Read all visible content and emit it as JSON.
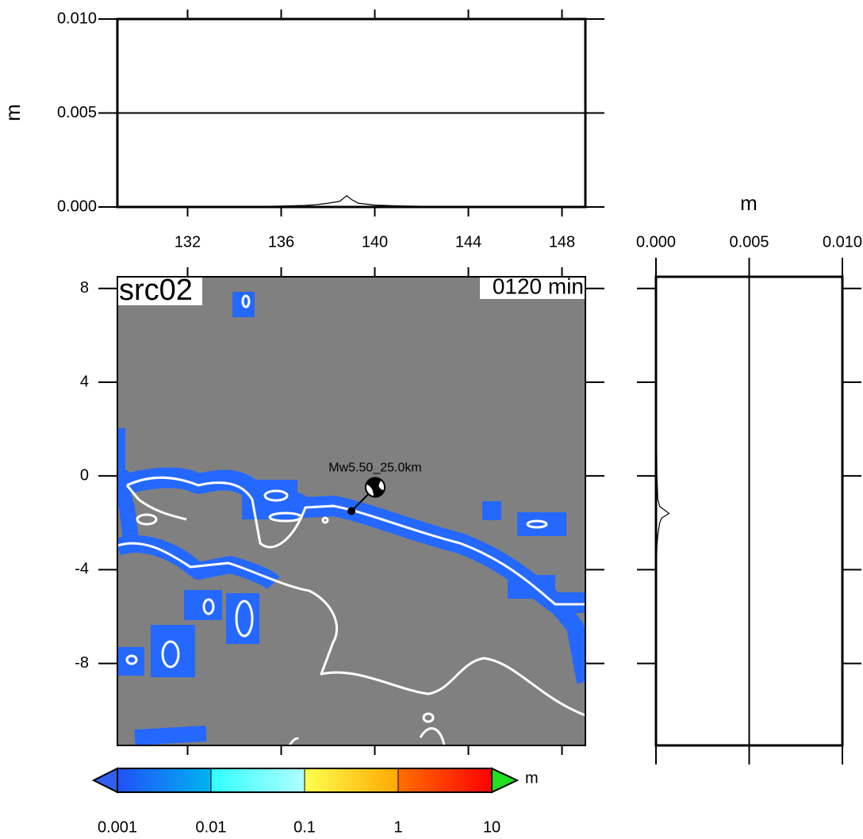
{
  "chart_data": [
    {
      "type": "line",
      "ylabel": "m",
      "color": "#000000",
      "x": [
        134,
        135,
        136,
        137,
        137.5,
        138,
        138.5,
        138.8,
        139,
        139.3,
        140,
        141,
        142,
        143,
        144,
        145
      ],
      "values": [
        2e-05,
        3e-05,
        5e-05,
        8e-05,
        0.00012,
        0.0002,
        0.0003,
        0.0006,
        0.0004,
        0.0002,
        0.0001,
        6e-05,
        4e-05,
        2e-05,
        1e-05,
        1e-05
      ],
      "xlim": [
        129,
        149
      ],
      "xticks": [
        132,
        136,
        140,
        144,
        148
      ],
      "ylim": [
        0,
        0.01
      ],
      "yticks": [
        {
          "value": 0,
          "label": "0.000"
        },
        0.005,
        {
          "value": 0.01,
          "label": "0.010"
        }
      ],
      "grid": true
    },
    {
      "type": "map",
      "title": "src02",
      "time_label": "0120 min",
      "event_label": "Mw5.50_25.0km",
      "epicenter": {
        "lon": 139,
        "lat": -1.5
      },
      "xlim": [
        129,
        149
      ],
      "ylim": [
        -11.5,
        8.5
      ],
      "yticks": [
        8,
        4,
        0,
        -4,
        -8
      ],
      "ocean_color": "#808080",
      "coast_color": "#ffffff",
      "wave_color": "#2468ff"
    },
    {
      "type": "line",
      "orientation": "horizontal",
      "xlabel": "m",
      "color": "#000000",
      "y": [
        4,
        2,
        0,
        -1,
        -1.3,
        -1.6,
        -1.8,
        -2,
        -2.5,
        -3,
        -4
      ],
      "values": [
        2e-05,
        3e-05,
        5e-05,
        0.0001,
        0.0002,
        0.0007,
        0.0003,
        0.0002,
        0.0001,
        5e-05,
        2e-05
      ],
      "xlim": [
        0,
        0.01
      ],
      "xticks": [
        {
          "value": 0,
          "label": "0.000"
        },
        0.005,
        {
          "value": 0.01,
          "label": "0.010"
        }
      ],
      "ylim": [
        -11.5,
        8.5
      ],
      "grid": true
    },
    {
      "type": "colorbar",
      "log_scale": true,
      "unit": "m",
      "lim": [
        0.001,
        10
      ],
      "ticks": [
        0.001,
        0.01,
        0.1,
        1,
        10
      ],
      "colors": [
        [
          "#2050f8",
          "#00b4f0"
        ],
        [
          "#30ffff",
          "#b0ffff"
        ],
        [
          "#ffff50",
          "#ffa800"
        ],
        [
          "#ff7000",
          "#ff0000"
        ]
      ],
      "under_color": "#3060f0",
      "over_color": "#20e020"
    }
  ]
}
